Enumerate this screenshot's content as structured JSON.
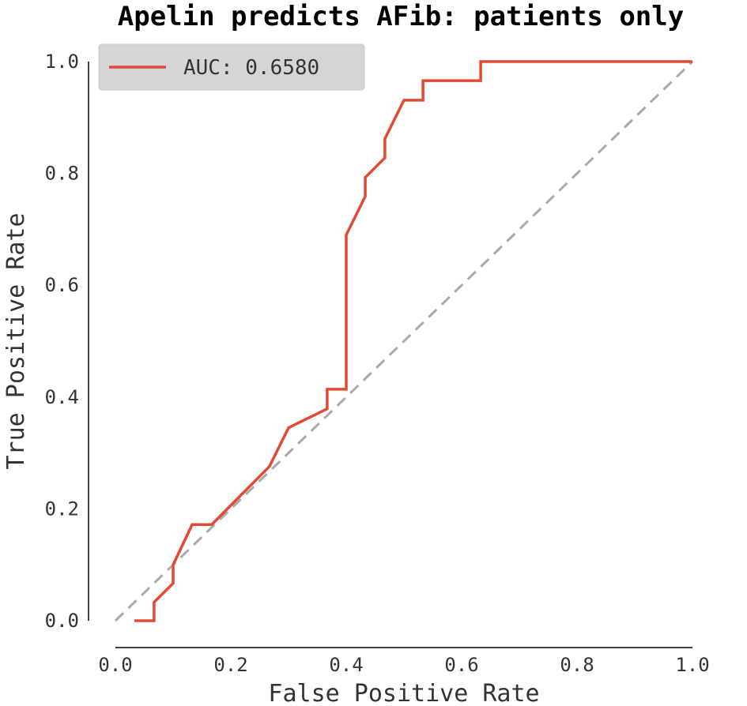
{
  "chart_data": {
    "type": "line",
    "title": "Apelin predicts AFib: patients only",
    "xlabel": "False Positive Rate",
    "ylabel": "True Positive Rate",
    "xlim": [
      0.0,
      1.0
    ],
    "ylim": [
      0.0,
      1.0
    ],
    "xticks": [
      "0.0",
      "0.2",
      "0.4",
      "0.6",
      "0.8",
      "1.0"
    ],
    "yticks": [
      "0.0",
      "0.2",
      "0.4",
      "0.6",
      "0.8",
      "1.0"
    ],
    "grid": false,
    "legend_position": "top-left",
    "series": [
      {
        "name": "AUC: 0.6580",
        "color": "#e24a33",
        "x": [
          0.033,
          0.067,
          0.067,
          0.1,
          0.1,
          0.133,
          0.167,
          0.267,
          0.3,
          0.367,
          0.367,
          0.4,
          0.4,
          0.433,
          0.433,
          0.467,
          0.467,
          0.5,
          0.533,
          0.533,
          0.633,
          0.633,
          1.0
        ],
        "y": [
          0.0,
          0.0,
          0.033,
          0.067,
          0.1,
          0.172,
          0.172,
          0.276,
          0.345,
          0.379,
          0.414,
          0.414,
          0.69,
          0.759,
          0.793,
          0.828,
          0.862,
          0.931,
          0.931,
          0.966,
          0.966,
          1.0,
          1.0
        ]
      },
      {
        "name": "",
        "color": "#aaaaaa",
        "dashed": true,
        "x": [
          0.0,
          1.0
        ],
        "y": [
          0.0,
          1.0
        ]
      }
    ]
  }
}
